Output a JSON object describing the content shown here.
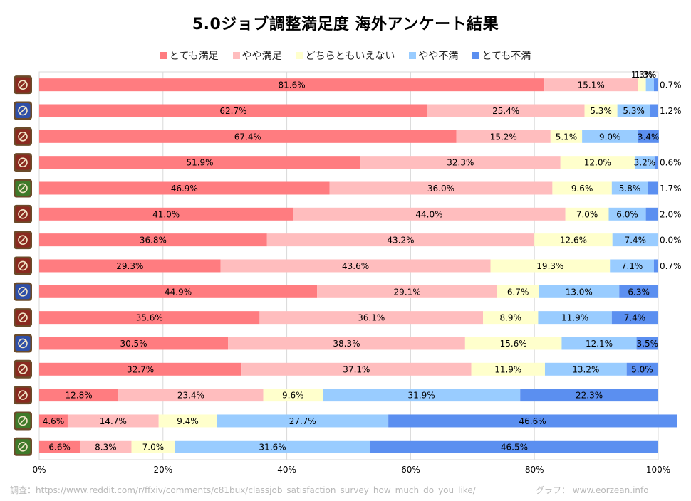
{
  "title": "5.0ジョブ調整満足度 海外アンケート結果",
  "footer": {
    "source": "調査：https://www.reddit.com/r/ffxiv/comments/c81bux/classjob_satisfaction_survey_how_much_do_you_like/",
    "credit": "グラフ： www.eorzean.info"
  },
  "chart_data": {
    "type": "bar",
    "orientation": "horizontal",
    "stacked": "percent",
    "title": "5.0ジョブ調整満足度 海外アンケート結果",
    "xlim": [
      0,
      100
    ],
    "x_ticks": [
      "0%",
      "20%",
      "40%",
      "60%",
      "80%",
      "100%"
    ],
    "grid": true,
    "legend_position": "top",
    "row_icon_colors": [
      "#8a2a20",
      "#2f4fa8",
      "#8a2a20",
      "#8a2a20",
      "#3f7a2a",
      "#8a2a20",
      "#8a2a20",
      "#8a2a20",
      "#2f4fa8",
      "#8a2a20",
      "#2f4fa8",
      "#8a2a20",
      "#8a2a20",
      "#3f7a2a",
      "#3f7a2a"
    ],
    "series": [
      {
        "name": "とても満足",
        "color": "#ff7c80",
        "values": [
          81.6,
          62.7,
          67.4,
          51.9,
          46.9,
          41.0,
          36.8,
          29.3,
          44.9,
          35.6,
          30.5,
          32.7,
          12.8,
          4.6,
          6.6
        ],
        "labels": [
          "81.6%",
          "62.7%",
          "67.4%",
          "51.9%",
          "46.9%",
          "41.0%",
          "36.8%",
          "29.3%",
          "44.9%",
          "35.6%",
          "30.5%",
          "32.7%",
          "12.8%",
          "4.6%",
          "6.6%"
        ]
      },
      {
        "name": "やや満足",
        "color": "#ffbdbe",
        "values": [
          15.1,
          25.4,
          15.2,
          32.3,
          36.0,
          44.0,
          43.2,
          43.6,
          29.1,
          36.1,
          38.3,
          37.1,
          23.4,
          14.7,
          8.3
        ],
        "labels": [
          "15.1%",
          "25.4%",
          "15.2%",
          "32.3%",
          "36.0%",
          "44.0%",
          "43.2%",
          "43.6%",
          "29.1%",
          "36.1%",
          "38.3%",
          "37.1%",
          "23.4%",
          "14.7%",
          "8.3%"
        ]
      },
      {
        "name": "どちらともいえない",
        "color": "#ffffcc",
        "values": [
          1.3,
          5.3,
          5.1,
          12.0,
          9.6,
          7.0,
          12.6,
          19.3,
          6.7,
          8.9,
          15.6,
          11.9,
          9.6,
          9.4,
          7.0
        ],
        "labels": [
          "1.3%",
          "5.3%",
          "5.1%",
          "12.0%",
          "9.6%",
          "7.0%",
          "12.6%",
          "19.3%",
          "6.7%",
          "8.9%",
          "15.6%",
          "11.9%",
          "9.6%",
          "9.4%",
          "7.0%"
        ]
      },
      {
        "name": "やや不満",
        "color": "#99ccff",
        "values": [
          1.3,
          5.3,
          9.0,
          3.2,
          5.8,
          6.0,
          7.4,
          7.1,
          13.0,
          11.9,
          12.1,
          13.2,
          31.9,
          27.7,
          31.6
        ],
        "labels": [
          "1.3%",
          "5.3%",
          "9.0%",
          "3.2%",
          "5.8%",
          "6.0%",
          "7.4%",
          "7.1%",
          "13.0%",
          "11.9%",
          "12.1%",
          "13.2%",
          "31.9%",
          "27.7%",
          "31.6%"
        ]
      },
      {
        "name": "とても不満",
        "color": "#5b8ff0",
        "values": [
          0.7,
          1.2,
          3.4,
          0.6,
          1.7,
          2.0,
          0.0,
          0.7,
          6.3,
          7.4,
          3.5,
          5.0,
          22.3,
          46.6,
          46.5
        ],
        "labels": [
          "0.7%",
          "1.2%",
          "3.4%",
          "0.6%",
          "1.7%",
          "2.0%",
          "0.0%",
          "0.7%",
          "6.3%",
          "7.4%",
          "3.5%",
          "5.0%",
          "22.3%",
          "46.6%",
          "46.5%"
        ]
      }
    ]
  }
}
